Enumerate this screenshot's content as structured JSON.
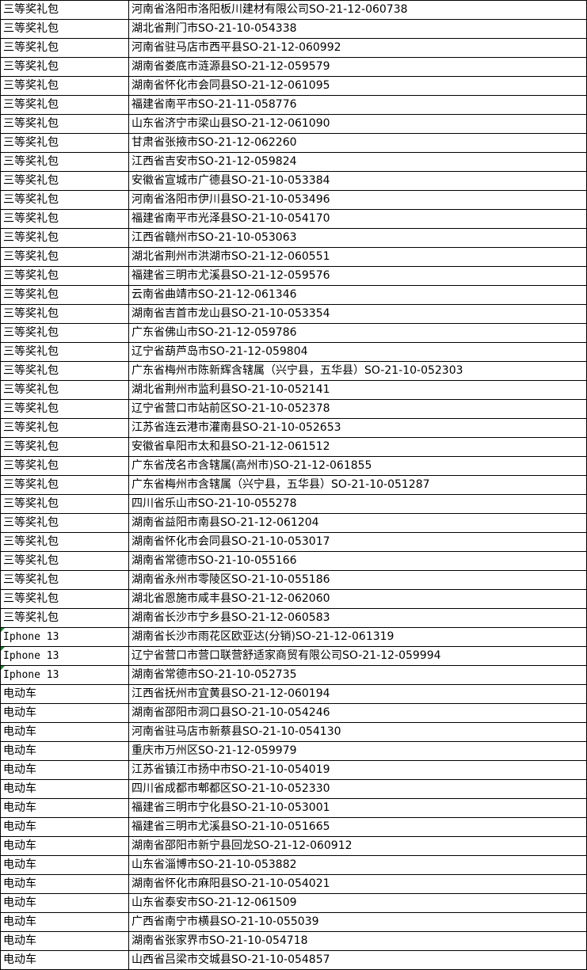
{
  "sheet": {
    "rows": [
      [
        "三等奖礼包",
        "河南省洛阳市洛阳板川建材有限公司SO-21-12-060738"
      ],
      [
        "三等奖礼包",
        "湖北省荆门市SO-21-10-054338"
      ],
      [
        "三等奖礼包",
        "河南省驻马店市西平县SO-21-12-060992"
      ],
      [
        "三等奖礼包",
        "湖南省娄底市涟源县SO-21-12-059579"
      ],
      [
        "三等奖礼包",
        "湖南省怀化市会同县SO-21-12-061095"
      ],
      [
        "三等奖礼包",
        "福建省南平市SO-21-11-058776"
      ],
      [
        "三等奖礼包",
        "山东省济宁市梁山县SO-21-12-061090"
      ],
      [
        "三等奖礼包",
        "甘肃省张掖市SO-21-12-062260"
      ],
      [
        "三等奖礼包",
        "江西省吉安市SO-21-12-059824"
      ],
      [
        "三等奖礼包",
        "安徽省宣城市广德县SO-21-10-053384"
      ],
      [
        "三等奖礼包",
        "河南省洛阳市伊川县SO-21-10-053496"
      ],
      [
        "三等奖礼包",
        "福建省南平市光泽县SO-21-10-054170"
      ],
      [
        "三等奖礼包",
        "江西省赣州市SO-21-10-053063"
      ],
      [
        "三等奖礼包",
        "湖北省荆州市洪湖市SO-21-12-060551"
      ],
      [
        "三等奖礼包",
        "福建省三明市尤溪县SO-21-12-059576"
      ],
      [
        "三等奖礼包",
        "云南省曲靖市SO-21-12-061346"
      ],
      [
        "三等奖礼包",
        "湖南省吉首市龙山县SO-21-10-053354"
      ],
      [
        "三等奖礼包",
        "广东省佛山市SO-21-12-059786"
      ],
      [
        "三等奖礼包",
        "辽宁省葫芦岛市SO-21-12-059804"
      ],
      [
        "三等奖礼包",
        "广东省梅州市陈新辉含辖属（兴宁县，五华县）SO-21-10-052303"
      ],
      [
        "三等奖礼包",
        "湖北省荆州市监利县SO-21-10-052141"
      ],
      [
        "三等奖礼包",
        "辽宁省营口市站前区SO-21-10-052378"
      ],
      [
        "三等奖礼包",
        "江苏省连云港市灌南县SO-21-10-052653"
      ],
      [
        "三等奖礼包",
        "安徽省阜阳市太和县SO-21-12-061512"
      ],
      [
        "三等奖礼包",
        "广东省茂名市含辖属(高州市)SO-21-12-061855"
      ],
      [
        "三等奖礼包",
        "广东省梅州市含辖属（兴宁县，五华县）SO-21-10-051287"
      ],
      [
        "三等奖礼包",
        "四川省乐山市SO-21-10-055278"
      ],
      [
        "三等奖礼包",
        "湖南省益阳市南县SO-21-12-061204"
      ],
      [
        "三等奖礼包",
        "湖南省怀化市会同县SO-21-10-053017"
      ],
      [
        "三等奖礼包",
        "湖南省常德市SO-21-10-055166"
      ],
      [
        "三等奖礼包",
        "湖南省永州市零陵区SO-21-10-055186"
      ],
      [
        "三等奖礼包",
        "湖北省恩施市咸丰县SO-21-12-062060"
      ],
      [
        "三等奖礼包",
        "湖南省长沙市宁乡县SO-21-12-060583"
      ],
      [
        "Iphone 13",
        "湖南省长沙市雨花区欧亚达(分销)SO-21-12-061319"
      ],
      [
        "Iphone 13",
        "辽宁省营口市营口联营舒适家商贸有限公司SO-21-12-059994"
      ],
      [
        "Iphone 13",
        "湖南省常德市SO-21-10-052735"
      ],
      [
        "电动车",
        "江西省抚州市宜黄县SO-21-12-060194"
      ],
      [
        "电动车",
        "湖南省邵阳市洞口县SO-21-10-054246"
      ],
      [
        "电动车",
        "河南省驻马店市新蔡县SO-21-10-054130"
      ],
      [
        "电动车",
        "重庆市万州区SO-21-12-059979"
      ],
      [
        "电动车",
        "江苏省镇江市扬中市SO-21-10-054019"
      ],
      [
        "电动车",
        "四川省成都市郫都区SO-21-10-052330"
      ],
      [
        "电动车",
        "福建省三明市宁化县SO-21-10-053001"
      ],
      [
        "电动车",
        "福建省三明市尤溪县SO-21-10-051665"
      ],
      [
        "电动车",
        "湖南省邵阳市新宁县回龙SO-21-12-060912"
      ],
      [
        "电动车",
        "山东省淄博市SO-21-10-053882"
      ],
      [
        "电动车",
        "湖南省怀化市麻阳县SO-21-10-054021"
      ],
      [
        "电动车",
        "山东省泰安市SO-21-12-061509"
      ],
      [
        "电动车",
        "广西省南宁市横县SO-21-10-055039"
      ],
      [
        "电动车",
        "湖南省张家界市SO-21-10-054718"
      ],
      [
        "电动车",
        "山西省吕梁市交城县SO-21-10-054857"
      ]
    ],
    "text_number_indicator_color": "#1e7d32"
  }
}
